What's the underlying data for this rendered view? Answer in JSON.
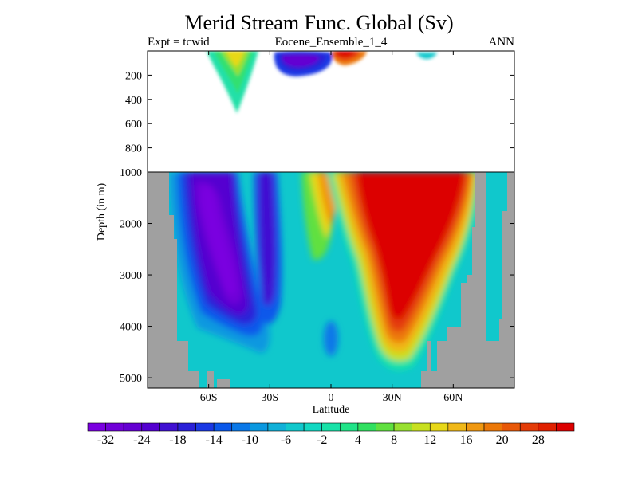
{
  "title": "Merid Stream Func. Global (Sv)",
  "left_label": "Expt = tcwid",
  "center_label": "Eocene_Ensemble_1_4",
  "right_label": "ANN",
  "chart_data": {
    "type": "heatmap",
    "title": "Merid Stream Func. Global (Sv)",
    "xlabel": "Latitude",
    "ylabel": "Depth (in m)",
    "xlim": [
      -90,
      90
    ],
    "x_ticks": [
      {
        "value": -60,
        "label": "60S"
      },
      {
        "value": -30,
        "label": "30S"
      },
      {
        "value": 0,
        "label": "0"
      },
      {
        "value": 30,
        "label": "30N"
      },
      {
        "value": 60,
        "label": "60N"
      }
    ],
    "upper_panel": {
      "ylim": [
        0,
        1000
      ],
      "y_ticks": [
        200,
        400,
        600,
        800,
        1000
      ]
    },
    "lower_panel": {
      "ylim": [
        1000,
        5200
      ],
      "y_ticks": [
        2000,
        3000,
        4000,
        5000
      ]
    },
    "colorbar": {
      "labels": [
        "-32",
        "-24",
        "-18",
        "-14",
        "-10",
        "-6",
        "-2",
        "4",
        "8",
        "12",
        "16",
        "20",
        "28"
      ],
      "colors": [
        "#7a00e0",
        "#7000d8",
        "#6400d2",
        "#5400d0",
        "#4010d2",
        "#2a20d8",
        "#1a38e4",
        "#0a58ea",
        "#0a78e8",
        "#0a98e0",
        "#10b0d8",
        "#10c8cc",
        "#12d8c2",
        "#18e2a8",
        "#20e488",
        "#30e060",
        "#60e040",
        "#98e030",
        "#c8e020",
        "#e8d818",
        "#f0b818",
        "#f09810",
        "#ec7808",
        "#e85808",
        "#e43c08",
        "#e02000",
        "#dc0000"
      ]
    },
    "land_color": "#a0a0a0",
    "features": [
      {
        "name": "southern cell (min ~ -32 Sv)",
        "lat_range": [
          -70,
          -30
        ],
        "depth_range": [
          1000,
          4800
        ],
        "value": -32
      },
      {
        "name": "northern cell (max ~ 28 Sv)",
        "lat_range": [
          5,
          55
        ],
        "depth_range": [
          1000,
          4300
        ],
        "value": 28
      },
      {
        "name": "upper 45S tongue",
        "lat_range": [
          -52,
          -38
        ],
        "depth_range": [
          0,
          500
        ],
        "value": 10
      },
      {
        "name": "upper 20S cell",
        "lat_range": [
          -28,
          -10
        ],
        "depth_range": [
          0,
          200
        ],
        "value": -28
      },
      {
        "name": "upper 5N cell",
        "lat_range": [
          0,
          12
        ],
        "depth_range": [
          0,
          100
        ],
        "value": 24
      }
    ]
  }
}
